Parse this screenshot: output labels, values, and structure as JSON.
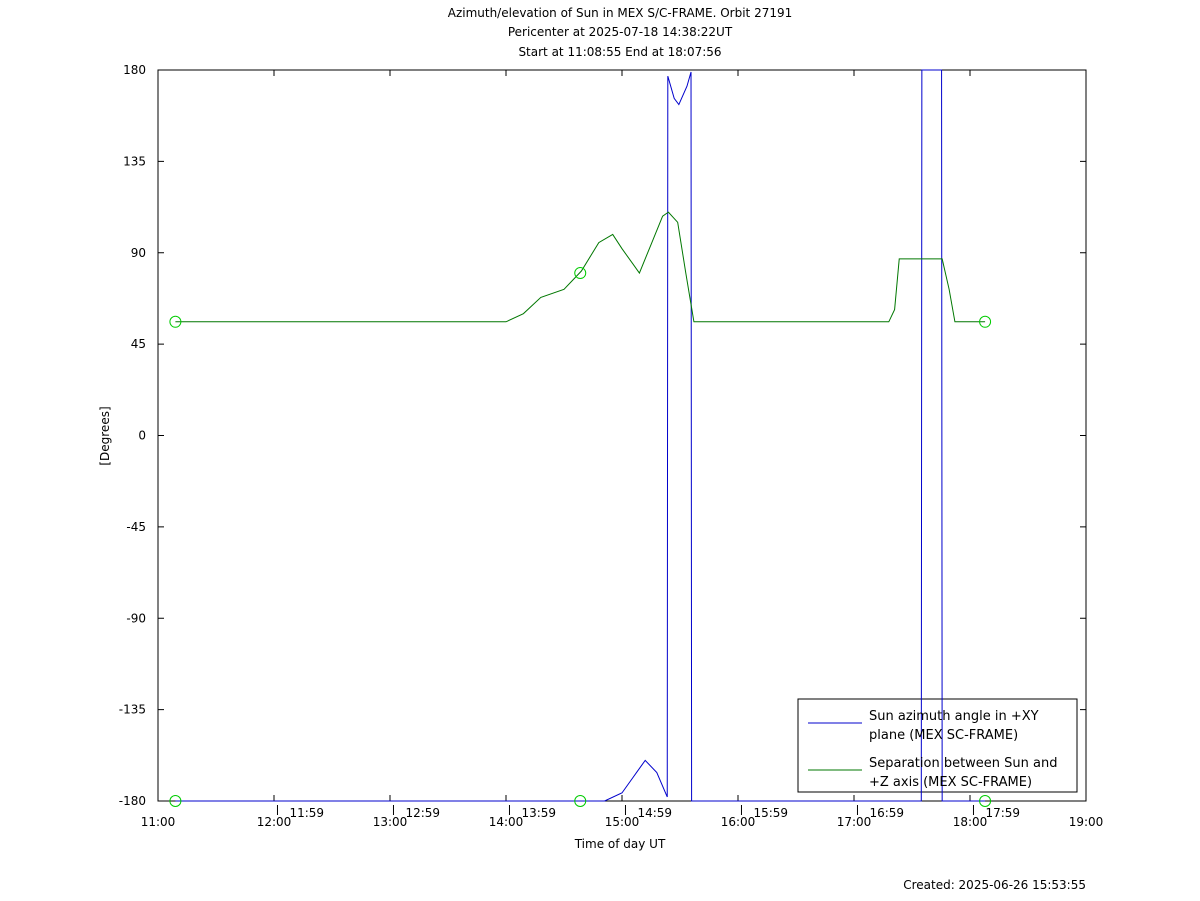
{
  "chart_data": {
    "type": "line",
    "title": "Azimuth/elevation of Sun in MEX S/C-FRAME.  Orbit 27191",
    "subtitle": [
      "Pericenter at 2025-07-18 14:38:22UT",
      "Start at 11:08:55 End at 18:07:56"
    ],
    "xlabel": "Time of day UT",
    "ylabel": "[Degrees]",
    "footer": "Created: 2025-06-26 15:53:55",
    "xlim": [
      11,
      19
    ],
    "xticks": [
      {
        "value": 11,
        "label": "11:00"
      },
      {
        "value": 12,
        "label": "12:00"
      },
      {
        "value": 13,
        "label": "13:00"
      },
      {
        "value": 14,
        "label": "14:00"
      },
      {
        "value": 15,
        "label": "15:00"
      },
      {
        "value": 16,
        "label": "16:00"
      },
      {
        "value": 17,
        "label": "17:00"
      },
      {
        "value": 18,
        "label": "18:00"
      },
      {
        "value": 19,
        "label": "19:00"
      }
    ],
    "ylim": [
      -180,
      180
    ],
    "yticks": [
      -180,
      -135,
      -90,
      -45,
      0,
      45,
      90,
      135,
      180
    ],
    "annotations": {
      "x": [
        12.03,
        13.03,
        14.03,
        15.03,
        16.03,
        17.03,
        18.03
      ],
      "labels": [
        "11:59",
        "12:59",
        "13:59",
        "14:59",
        "15:59",
        "16:59",
        "17:59"
      ]
    },
    "series": [
      {
        "name": "Sun azimuth angle in +XY plane (MEX SC-FRAME)",
        "color": "#0000cc",
        "x": [
          11.15,
          14.85,
          15.0,
          15.1,
          15.2,
          15.3,
          15.39,
          15.395,
          15.45,
          15.49,
          15.56,
          15.595,
          15.6,
          17.58,
          17.585,
          17.755,
          17.76,
          18.13
        ],
        "values": [
          -180,
          -180,
          -176,
          -168,
          -160,
          -166,
          -178,
          177,
          166,
          163,
          172,
          179,
          -180,
          -180,
          180,
          180,
          -180,
          -180
        ]
      },
      {
        "name": "Separation between Sun and +Z axis (MEX SC-FRAME)",
        "color": "#007700",
        "x": [
          11.15,
          14.0,
          14.15,
          14.3,
          14.5,
          14.65,
          14.8,
          14.92,
          15.0,
          15.15,
          15.25,
          15.35,
          15.4,
          15.48,
          15.55,
          15.62,
          17.3,
          17.35,
          17.39,
          17.76,
          17.82,
          17.87,
          18.13
        ],
        "values": [
          56,
          56,
          60,
          68,
          72,
          81,
          95,
          99,
          92,
          80,
          94,
          108,
          110,
          105,
          80,
          56,
          56,
          62,
          87,
          87,
          72,
          56,
          56
        ]
      }
    ],
    "event_markers": {
      "color": "#00cc00",
      "x": [
        11.15,
        14.64,
        18.13,
        11.15,
        14.64,
        18.13
      ],
      "y": [
        56,
        80,
        56,
        -180,
        -180,
        -180
      ]
    }
  }
}
